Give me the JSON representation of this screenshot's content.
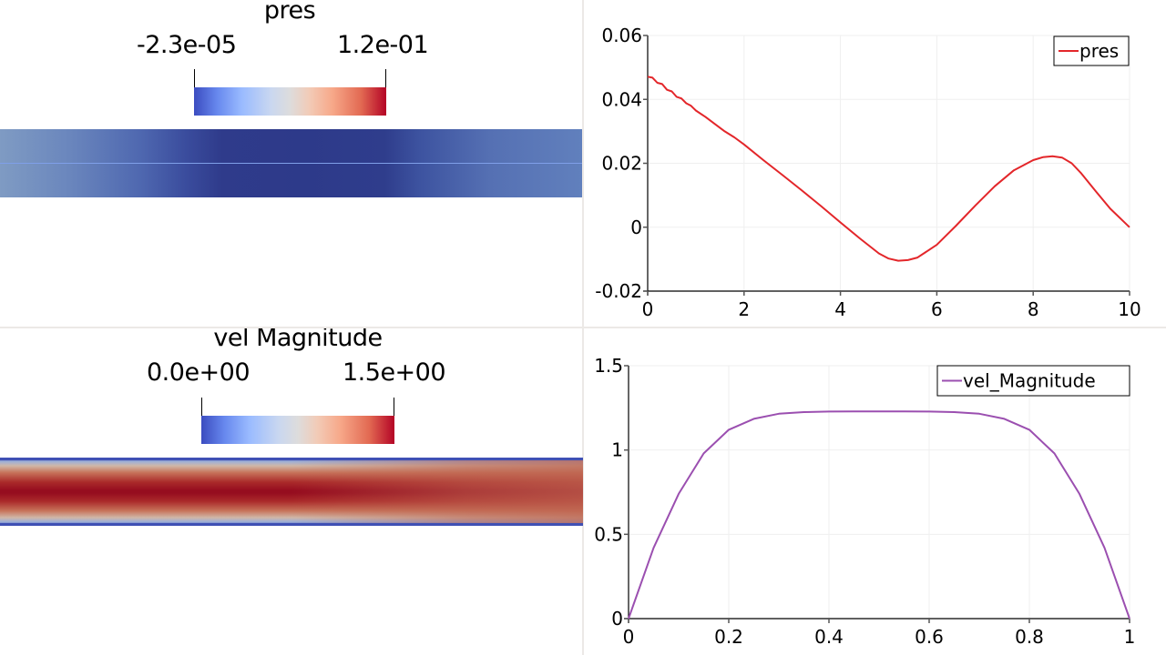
{
  "render_views": {
    "pressure": {
      "colorbar_title": "pres",
      "range_min_label": "-2.3e-05",
      "range_max_label": "1.2e-01",
      "colormap": "Cool to Warm"
    },
    "velocity": {
      "colorbar_title": "vel Magnitude",
      "range_min_label": "0.0e+00",
      "range_max_label": "1.5e+00",
      "colormap": "Cool to Warm"
    }
  },
  "chart_data": [
    {
      "type": "line",
      "title": "",
      "xlabel": "",
      "ylabel": "",
      "xlim": [
        0,
        10
      ],
      "ylim": [
        -0.02,
        0.06
      ],
      "xticks": [
        "0",
        "2",
        "4",
        "6",
        "8",
        "10"
      ],
      "yticks": [
        "-0.02",
        "0",
        "0.02",
        "0.04",
        "0.06"
      ],
      "xtick_values": [
        0,
        2,
        4,
        6,
        8,
        10
      ],
      "ytick_values": [
        -0.02,
        0,
        0.02,
        0.04,
        0.06
      ],
      "grid": true,
      "legend_position": "top-right",
      "series": [
        {
          "name": "pres",
          "color": "#e3262a",
          "x": [
            0,
            0.1,
            0.2,
            0.3,
            0.4,
            0.5,
            0.6,
            0.7,
            0.8,
            0.9,
            1.0,
            1.2,
            1.4,
            1.6,
            1.8,
            2.0,
            2.4,
            2.8,
            3.2,
            3.6,
            4.0,
            4.4,
            4.8,
            5.0,
            5.2,
            5.4,
            5.6,
            6.0,
            6.4,
            6.8,
            7.2,
            7.6,
            8.0,
            8.2,
            8.4,
            8.6,
            8.8,
            9.0,
            9.3,
            9.6,
            10.0
          ],
          "y": [
            0.0471,
            0.0468,
            0.0452,
            0.0448,
            0.043,
            0.0425,
            0.0408,
            0.0403,
            0.0388,
            0.038,
            0.0365,
            0.0345,
            0.0322,
            0.03,
            0.0281,
            0.0259,
            0.021,
            0.0163,
            0.0115,
            0.0066,
            0.0015,
            -0.0035,
            -0.0082,
            -0.0098,
            -0.0105,
            -0.0103,
            -0.0095,
            -0.0055,
            0.0005,
            0.0068,
            0.0128,
            0.0178,
            0.021,
            0.0219,
            0.0222,
            0.0218,
            0.02,
            0.0168,
            0.0112,
            0.0058,
            0.0
          ]
        }
      ]
    },
    {
      "type": "line",
      "title": "",
      "xlabel": "",
      "ylabel": "",
      "xlim": [
        0,
        1
      ],
      "ylim": [
        0,
        1.5
      ],
      "xticks": [
        "0",
        "0.2",
        "0.4",
        "0.6",
        "0.8",
        "1"
      ],
      "yticks": [
        "0",
        "0.5",
        "1",
        "1.5"
      ],
      "xtick_values": [
        0,
        0.2,
        0.4,
        0.6,
        0.8,
        1
      ],
      "ytick_values": [
        0,
        0.5,
        1,
        1.5
      ],
      "grid": true,
      "legend_position": "top-right",
      "series": [
        {
          "name": "vel_Magnitude",
          "color": "#9b4fb0",
          "x": [
            0,
            0.05,
            0.1,
            0.15,
            0.2,
            0.25,
            0.3,
            0.35,
            0.4,
            0.45,
            0.5,
            0.55,
            0.6,
            0.65,
            0.7,
            0.75,
            0.8,
            0.85,
            0.9,
            0.95,
            1.0
          ],
          "y": [
            0,
            0.42,
            0.74,
            0.98,
            1.12,
            1.185,
            1.215,
            1.225,
            1.228,
            1.229,
            1.229,
            1.229,
            1.228,
            1.225,
            1.215,
            1.185,
            1.12,
            0.98,
            0.74,
            0.42,
            0
          ]
        }
      ]
    }
  ]
}
